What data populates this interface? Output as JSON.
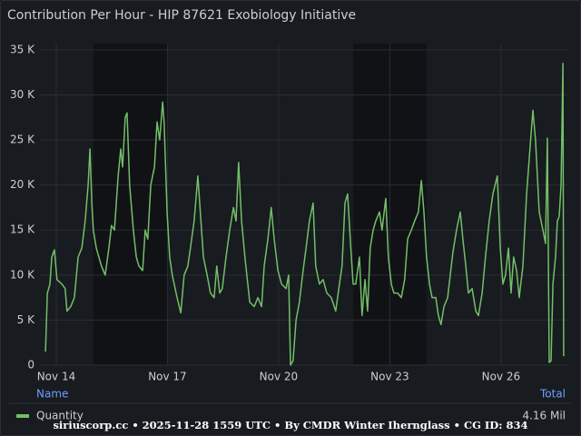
{
  "chart_data": {
    "type": "line",
    "title": "Contribution Per Hour - HIP 87621 Exobiology Initiative",
    "xlim": [
      13.56,
      27.79
    ],
    "xticks": [
      {
        "value": 14,
        "label": "Nov 14"
      },
      {
        "value": 17,
        "label": "Nov 17"
      },
      {
        "value": 20,
        "label": "Nov 20"
      },
      {
        "value": 23,
        "label": "Nov 23"
      },
      {
        "value": 26,
        "label": "Nov 26"
      }
    ],
    "ylim": [
      0,
      36500
    ],
    "yticks": [
      {
        "value": 0,
        "label": "0"
      },
      {
        "value": 5000,
        "label": "5 K"
      },
      {
        "value": 10000,
        "label": "10 K"
      },
      {
        "value": 15000,
        "label": "15 K"
      },
      {
        "value": 20000,
        "label": "20 K"
      },
      {
        "value": 25000,
        "label": "25 K"
      },
      {
        "value": 30000,
        "label": "30 K"
      },
      {
        "value": 35000,
        "label": "35 K"
      }
    ],
    "grid": true,
    "bands": [
      [
        15.0,
        16.99
      ],
      [
        22.01,
        23.99
      ]
    ],
    "legend_header": {
      "name": "Name",
      "total": "Total"
    },
    "series": [
      {
        "name": "Quantity",
        "color": "#73bf69",
        "total": "4.16 Mil",
        "x": [
          13.71,
          13.76,
          13.83,
          13.88,
          13.95,
          14.02,
          14.15,
          14.24,
          14.29,
          14.39,
          14.49,
          14.59,
          14.69,
          14.78,
          14.86,
          14.91,
          14.96,
          15.0,
          15.08,
          15.22,
          15.32,
          15.42,
          15.49,
          15.57,
          15.67,
          15.74,
          15.79,
          15.86,
          15.91,
          15.98,
          16.08,
          16.16,
          16.23,
          16.33,
          16.4,
          16.47,
          16.55,
          16.65,
          16.72,
          16.79,
          16.87,
          16.91,
          16.99,
          17.06,
          17.13,
          17.26,
          17.36,
          17.45,
          17.55,
          17.62,
          17.72,
          17.82,
          17.87,
          17.97,
          18.07,
          18.16,
          18.26,
          18.33,
          18.41,
          18.48,
          18.58,
          18.68,
          18.78,
          18.85,
          18.92,
          19.0,
          19.09,
          19.22,
          19.34,
          19.44,
          19.54,
          19.61,
          19.71,
          19.8,
          19.88,
          19.98,
          20.08,
          20.2,
          20.27,
          20.32,
          20.39,
          20.47,
          20.56,
          20.66,
          20.74,
          20.83,
          20.93,
          21.0,
          21.1,
          21.2,
          21.3,
          21.42,
          21.54,
          21.64,
          21.71,
          21.79,
          21.86,
          21.94,
          22.01,
          22.08,
          22.18,
          22.25,
          22.33,
          22.4,
          22.47,
          22.55,
          22.62,
          22.72,
          22.79,
          22.89,
          22.96,
          23.04,
          23.11,
          23.21,
          23.31,
          23.4,
          23.48,
          23.58,
          23.67,
          23.77,
          23.85,
          23.92,
          23.99,
          24.07,
          24.14,
          24.24,
          24.31,
          24.38,
          24.46,
          24.56,
          24.63,
          24.7,
          24.8,
          24.9,
          24.97,
          25.05,
          25.12,
          25.22,
          25.32,
          25.39,
          25.49,
          25.58,
          25.68,
          25.78,
          25.9,
          25.98,
          26.05,
          26.12,
          26.2,
          26.27,
          26.34,
          26.42,
          26.49,
          26.59,
          26.69,
          26.78,
          26.86,
          26.93,
          27.03,
          27.13,
          27.2,
          27.25,
          27.3,
          27.35,
          27.4,
          27.47,
          27.52,
          27.57,
          27.62,
          27.67,
          27.69
        ],
        "values": [
          1500,
          8000,
          9000,
          12000,
          12800,
          9500,
          9000,
          8500,
          6000,
          6500,
          7500,
          12000,
          13000,
          16000,
          20000,
          24000,
          18000,
          15000,
          13000,
          11000,
          10000,
          13000,
          15500,
          15000,
          21000,
          24000,
          22000,
          27500,
          28000,
          20000,
          15000,
          12000,
          11000,
          10500,
          15000,
          14000,
          20000,
          22000,
          27000,
          25000,
          29200,
          27000,
          17000,
          12000,
          10000,
          7500,
          5800,
          10000,
          11000,
          13000,
          16000,
          21000,
          18000,
          12000,
          10000,
          8000,
          7500,
          11000,
          8000,
          8500,
          12000,
          15000,
          17500,
          16000,
          22500,
          16000,
          12000,
          7000,
          6500,
          7500,
          6500,
          11000,
          14000,
          17500,
          14000,
          10500,
          9000,
          8500,
          10000,
          0,
          500,
          5000,
          7000,
          10500,
          13000,
          16000,
          18000,
          11000,
          9000,
          9500,
          8000,
          7500,
          6000,
          9000,
          11000,
          18000,
          19000,
          13500,
          9000,
          9000,
          12000,
          5500,
          9500,
          6000,
          13000,
          15000,
          16000,
          17000,
          15000,
          18500,
          12000,
          9000,
          8000,
          8000,
          7500,
          9500,
          14000,
          15000,
          16000,
          17000,
          20500,
          17000,
          12000,
          9000,
          7500,
          7500,
          5500,
          4500,
          6500,
          7500,
          10000,
          12500,
          15000,
          17000,
          14000,
          11000,
          8000,
          8500,
          6000,
          5500,
          8000,
          12000,
          16000,
          19000,
          21000,
          13000,
          9000,
          10000,
          13000,
          8000,
          12000,
          10500,
          7500,
          11000,
          19000,
          24000,
          28300,
          25000,
          17000,
          15000,
          13500,
          25200,
          300,
          500,
          9000,
          12000,
          16000,
          16500,
          20000,
          33500,
          1000
        ]
      }
    ],
    "footer": "siriuscorp.cc • 2025-11-28 1559 UTC • By CMDR Winter Ihernglass • CG ID: 834"
  }
}
